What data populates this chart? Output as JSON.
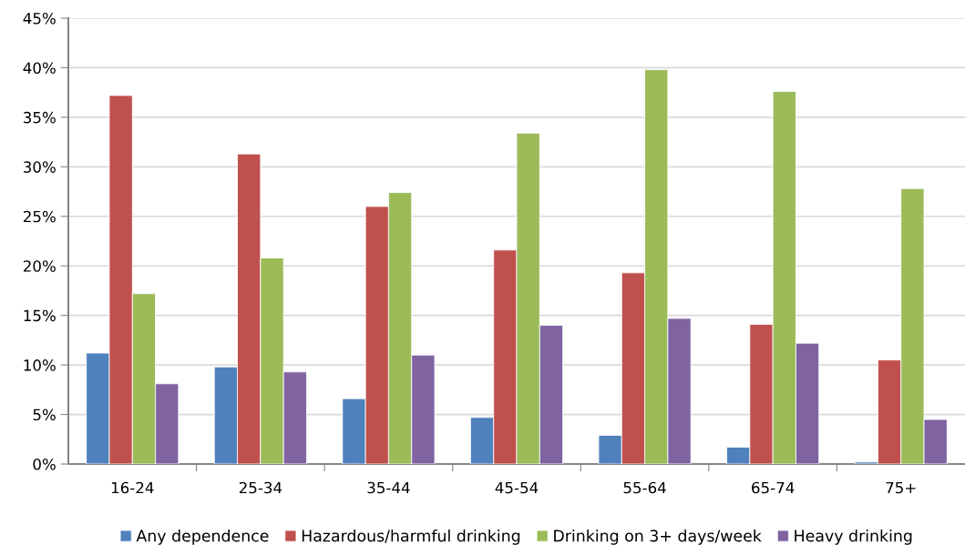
{
  "chart_data": {
    "type": "bar",
    "categories": [
      "16-24",
      "25-34",
      "35-44",
      "45-54",
      "55-64",
      "65-74",
      "75+"
    ],
    "series": [
      {
        "name": "Any dependence",
        "color": "#4f81bd",
        "values": [
          11.2,
          9.8,
          6.6,
          4.7,
          2.9,
          1.7,
          0.2
        ]
      },
      {
        "name": "Hazardous/harmful drinking",
        "color": "#c0504d",
        "values": [
          37.2,
          31.3,
          26.0,
          21.6,
          19.3,
          14.1,
          10.5
        ]
      },
      {
        "name": "Drinking on 3+ days/week",
        "color": "#9bbb59",
        "values": [
          17.2,
          20.8,
          27.4,
          33.4,
          39.8,
          37.6,
          27.8
        ]
      },
      {
        "name": "Heavy drinking",
        "color": "#8064a2",
        "values": [
          8.1,
          9.3,
          11.0,
          14.0,
          14.7,
          12.2,
          4.5
        ]
      }
    ],
    "ylim": [
      0,
      45
    ],
    "yticks": [
      {
        "value": 0,
        "label": "0%"
      },
      {
        "value": 5,
        "label": "5%"
      },
      {
        "value": 10,
        "label": "10%"
      },
      {
        "value": 15,
        "label": "15%"
      },
      {
        "value": 20,
        "label": "20%"
      },
      {
        "value": 25,
        "label": "25%"
      },
      {
        "value": 30,
        "label": "30%"
      },
      {
        "value": 35,
        "label": "35%"
      },
      {
        "value": 40,
        "label": "40%"
      },
      {
        "value": 45,
        "label": "45%"
      }
    ],
    "grid": "y",
    "legend": "bottom"
  }
}
